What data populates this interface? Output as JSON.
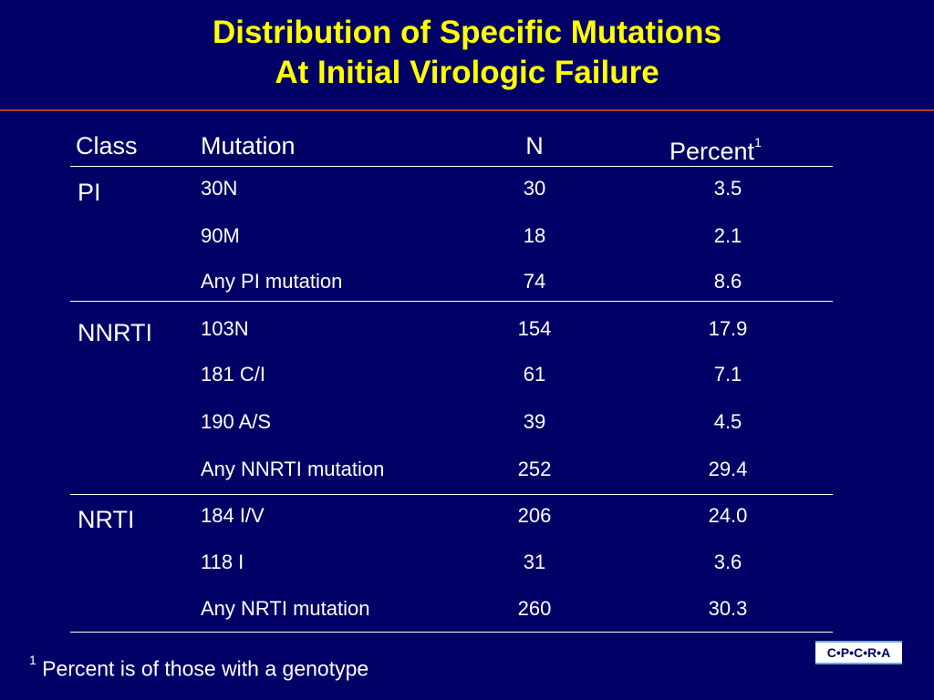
{
  "slide": {
    "title_line1": "Distribution of Specific Mutations",
    "title_line2": "At Initial Virologic Failure",
    "colors": {
      "background": "#000066",
      "title": "#ffff00",
      "title_rule": "#b53a2a",
      "text": "#ffffff"
    }
  },
  "table": {
    "headers": {
      "class": "Class",
      "mutation": "Mutation",
      "n": "N",
      "percent": "Percent",
      "percent_sup": "1"
    },
    "groups": [
      {
        "class": "PI",
        "rows": [
          {
            "mutation": "30N",
            "n": "30",
            "percent": "3.5"
          },
          {
            "mutation": "90M",
            "n": "18",
            "percent": "2.1"
          },
          {
            "mutation": "Any PI mutation",
            "n": "74",
            "percent": "8.6"
          }
        ]
      },
      {
        "class": "NNRTI",
        "rows": [
          {
            "mutation": "103N",
            "n": "154",
            "percent": "17.9"
          },
          {
            "mutation": "181 C/I",
            "n": "61",
            "percent": "7.1"
          },
          {
            "mutation": "190 A/S",
            "n": "39",
            "percent": "4.5"
          },
          {
            "mutation": "Any NNRTI mutation",
            "n": "252",
            "percent": "29.4"
          }
        ]
      },
      {
        "class": "NRTI",
        "rows": [
          {
            "mutation": "184 I/V",
            "n": "206",
            "percent": "24.0"
          },
          {
            "mutation": "118 I",
            "n": "31",
            "percent": "3.6"
          },
          {
            "mutation": "Any NRTI mutation",
            "n": "260",
            "percent": "30.3"
          }
        ]
      }
    ]
  },
  "footnote": {
    "marker": "1",
    "text": " Percent is of those with a genotype"
  },
  "logo": {
    "text": "C•P•C•R•A"
  }
}
